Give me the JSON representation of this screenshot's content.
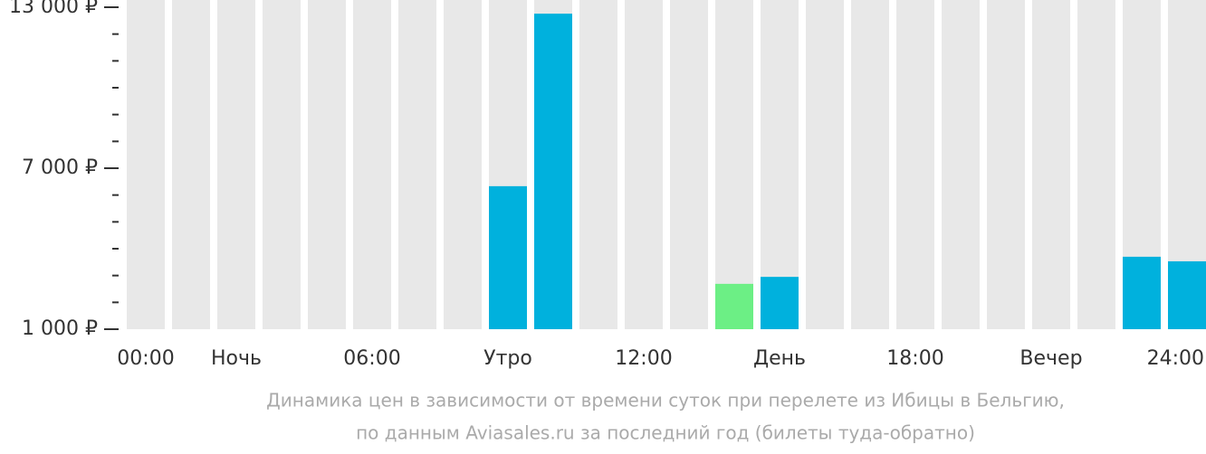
{
  "chart_data": {
    "type": "bar",
    "categories": [
      "00:00",
      null,
      "Ночь",
      null,
      null,
      "06:00",
      null,
      null,
      "Утро",
      null,
      null,
      "12:00",
      null,
      null,
      "День",
      null,
      null,
      "18:00",
      null,
      null,
      "Вечер",
      null,
      null,
      "24:00"
    ],
    "values": [
      null,
      null,
      null,
      null,
      null,
      null,
      null,
      null,
      6330,
      12760,
      null,
      null,
      null,
      2690,
      2950,
      null,
      null,
      null,
      null,
      null,
      null,
      null,
      3700,
      3530
    ],
    "color": "#00b1dd",
    "highlight_color": "#6cef85",
    "highlight": 13,
    "background_color": "#e8e8e8",
    "ylim": [
      1000,
      13000
    ],
    "yticks": [
      {
        "value": 1000,
        "label": "1 000 ₽"
      },
      {
        "value": 7000,
        "label": "7 000 ₽"
      },
      {
        "value": 13000,
        "label": "13 000 ₽"
      }
    ],
    "yticks_minor": [
      2000,
      3000,
      4000,
      5000,
      6000,
      8000,
      9000,
      10000,
      11000,
      12000
    ],
    "caption": [
      "Динамика цен в зависимости от времени суток при перелете из Ибицы в Бельгию,",
      "по данным Aviasales.ru за последний год (билеты туда-обратно)"
    ]
  }
}
